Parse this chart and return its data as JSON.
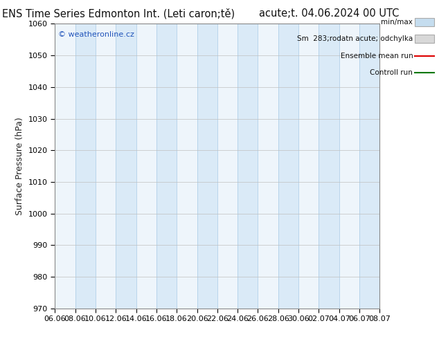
{
  "title_left": "ENS Time Series Edmonton Int. (Leti caron;tě)",
  "title_right": "acute;t. 04.06.2024 00 UTC",
  "ylabel": "Surface Pressure (hPa)",
  "ylim": [
    970,
    1060
  ],
  "yticks": [
    970,
    980,
    990,
    1000,
    1010,
    1020,
    1030,
    1040,
    1050,
    1060
  ],
  "xtick_labels": [
    "06.06",
    "08.06",
    "10.06",
    "12.06",
    "14.06",
    "16.06",
    "18.06",
    "20.06",
    "22.06",
    "24.06",
    "26.06",
    "28.06",
    "30.06",
    "02.07",
    "04.07",
    "06.07",
    "08.07"
  ],
  "watermark": "© weatheronline.cz",
  "legend_entries": [
    "min/max",
    "Sm  283;rodatn acute; odchylka",
    "Ensemble mean run",
    "Controll run"
  ],
  "stripe_color": "#daeaf7",
  "stripe_edge_color": "#b0cfe8",
  "bg_color": "#ffffff",
  "plot_bg_color": "#eef5fb",
  "ensemble_mean_color": "#dd0000",
  "control_run_color": "#007700",
  "minmax_color": "#c5ddef",
  "minmax_line_color": "#aaaaaa",
  "sm_color": "#d8d8d8",
  "title_fontsize": 10.5,
  "tick_fontsize": 8,
  "legend_fontsize": 8,
  "ylabel_fontsize": 9
}
